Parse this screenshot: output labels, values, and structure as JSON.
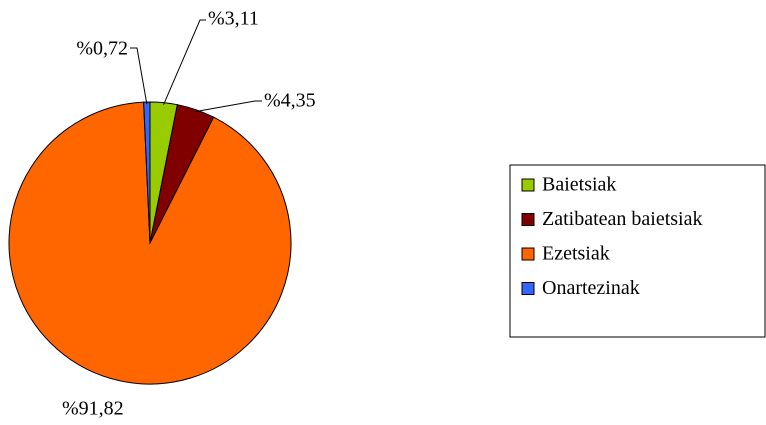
{
  "chart_data": {
    "type": "pie",
    "categories": [
      "Baietsiak",
      "Zatibatean baietsiak",
      "Ezetsiak",
      "Onartezinak"
    ],
    "values": [
      3.11,
      4.35,
      91.82,
      0.72
    ],
    "value_labels": [
      "%3,11",
      "%4,35",
      "%91,82",
      "%0,72"
    ],
    "colors": [
      "#99cc00",
      "#800000",
      "#ff6600",
      "#3366ff"
    ],
    "legend": "right"
  }
}
